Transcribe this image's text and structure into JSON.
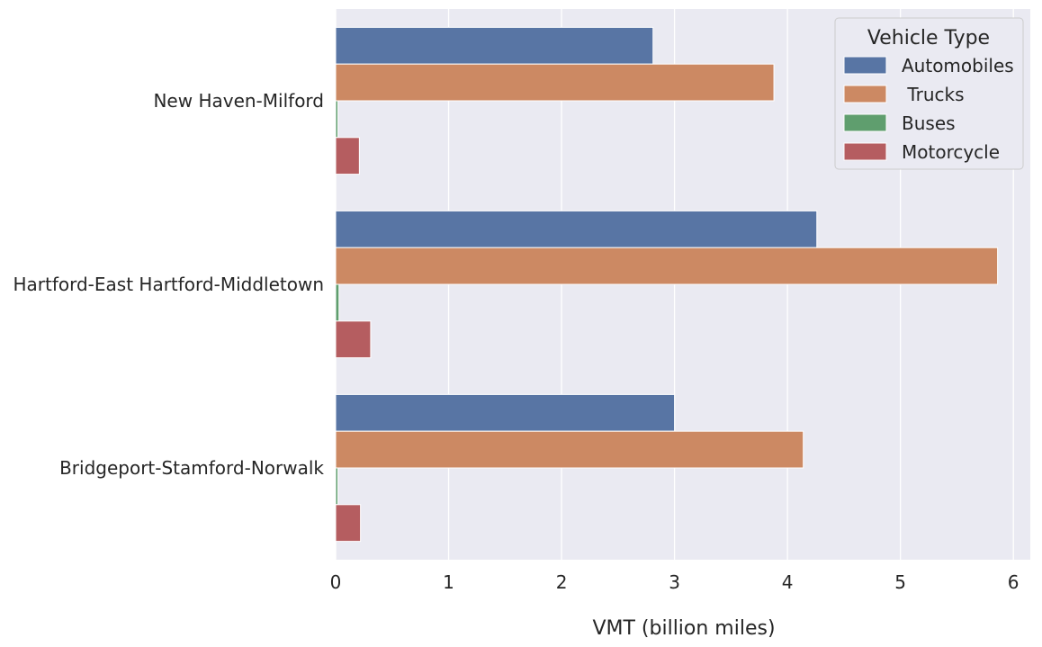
{
  "chart_data": {
    "type": "bar",
    "orientation": "horizontal",
    "categories": [
      "New Haven-Milford",
      "Hartford-East Hartford-Middletown",
      "Bridgeport-Stamford-Norwalk"
    ],
    "series": [
      {
        "name": "Automobiles",
        "values": [
          2.81,
          4.26,
          3.0
        ],
        "color": "#5875a4"
      },
      {
        "name": " Trucks",
        "values": [
          3.88,
          5.86,
          4.14
        ],
        "color": "#cc8963"
      },
      {
        "name": "Buses",
        "values": [
          0.02,
          0.03,
          0.02
        ],
        "color": "#5f9e6e"
      },
      {
        "name": "Motorcycle",
        "values": [
          0.21,
          0.31,
          0.22
        ],
        "color": "#b55d60"
      }
    ],
    "title": "",
    "xlabel": "VMT (billion miles)",
    "ylabel": "",
    "xlim": [
      0,
      6.15
    ],
    "xticks": [
      "0",
      "1",
      "2",
      "3",
      "4",
      "5",
      "6"
    ],
    "grid": true,
    "legend": {
      "title": "Vehicle Type",
      "placement": "top-right"
    },
    "background_color": "#eaeaf2",
    "grid_color": "#ffffff"
  }
}
